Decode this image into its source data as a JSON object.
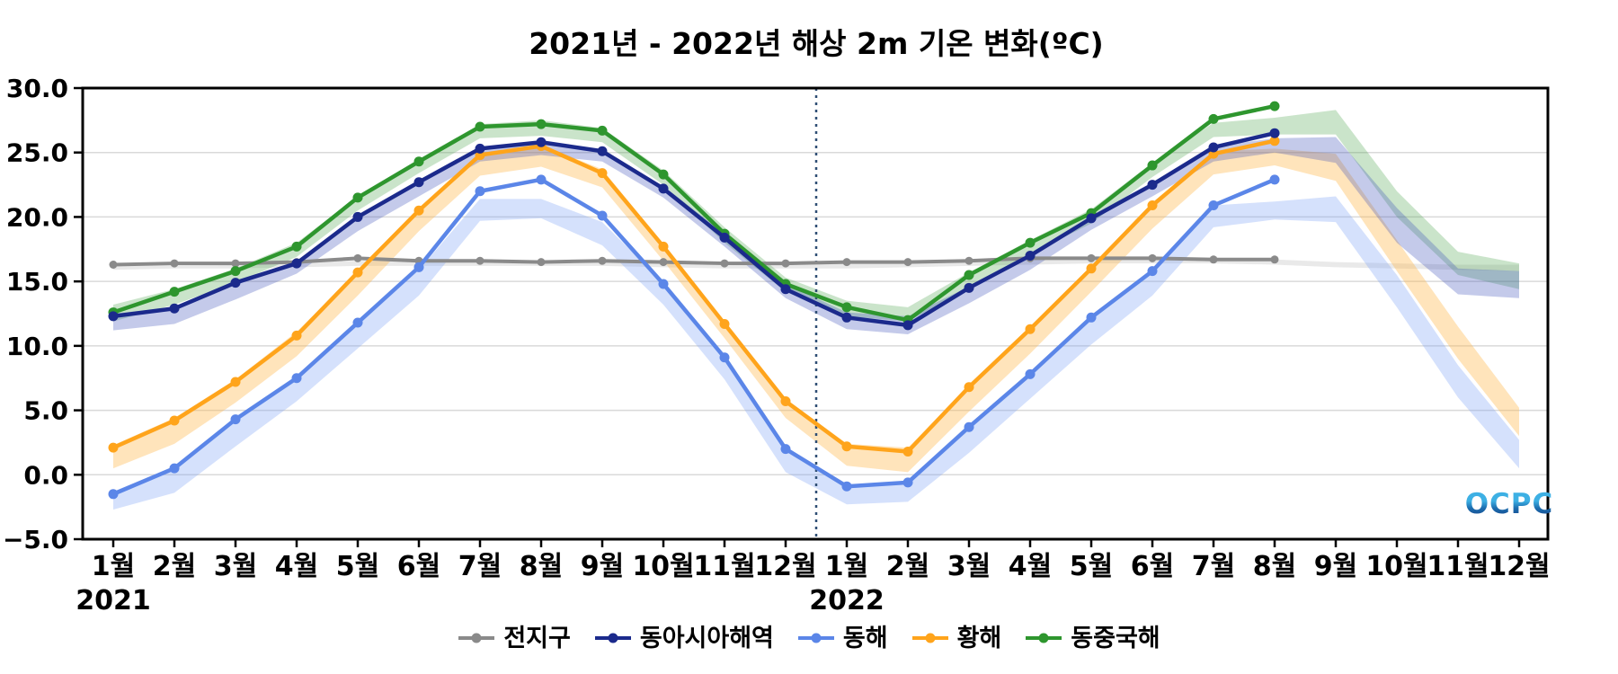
{
  "title": "2021년 - 2022년 해상 2m 기온 변화(ºC)",
  "logo_text": "OCPC",
  "chart_data": {
    "type": "line",
    "title": "2021년 - 2022년 해상 2m 기온 변화(ºC)",
    "ylim": [
      -5,
      30
    ],
    "grid": "horizontal",
    "legend_position": "bottom",
    "y_ticks": [
      {
        "value": 30,
        "label": "30.0"
      },
      {
        "value": 25,
        "label": "25.0"
      },
      {
        "value": 20,
        "label": "20.0"
      },
      {
        "value": 15,
        "label": "15.0"
      },
      {
        "value": 10,
        "label": "10.0"
      },
      {
        "value": 5,
        "label": "5.0"
      },
      {
        "value": 0,
        "label": "0.0"
      },
      {
        "value": -5,
        "label": "−5.0"
      }
    ],
    "gridline_values": [
      25,
      20,
      15,
      10,
      5,
      0
    ],
    "x_tick_labels": [
      "1월",
      "2월",
      "3월",
      "4월",
      "5월",
      "6월",
      "7월",
      "8월",
      "9월",
      "10월",
      "11월",
      "12월",
      "1월",
      "2월",
      "3월",
      "4월",
      "5월",
      "6월",
      "7월",
      "8월",
      "9월",
      "10월",
      "11월",
      "12월"
    ],
    "year_labels": [
      {
        "text": "2021",
        "month_index": 0
      },
      {
        "text": "2022",
        "month_index": 12
      }
    ],
    "year_divider_between": [
      11,
      12
    ],
    "divider_color": "#2f4e74",
    "series": [
      {
        "name": "전지구",
        "color": "#8a8a8a",
        "band_color": "#c9c9c9",
        "band_opacity": 0.4,
        "line_width": 4,
        "marker_radius": 4.5,
        "values": [
          16.3,
          16.4,
          16.4,
          16.5,
          16.8,
          16.6,
          16.6,
          16.5,
          16.6,
          16.5,
          16.4,
          16.4,
          16.5,
          16.5,
          16.6,
          16.8,
          16.8,
          16.8,
          16.7,
          16.7,
          null,
          null,
          null,
          null
        ],
        "band_low": [
          15.9,
          16.0,
          16.0,
          16.1,
          16.2,
          16.2,
          16.2,
          16.2,
          16.2,
          16.1,
          16.0,
          16.0,
          16.0,
          16.1,
          16.2,
          16.3,
          16.4,
          16.4,
          16.4,
          16.3,
          16.1,
          16.0,
          15.9,
          15.8
        ],
        "band_high": [
          16.3,
          16.4,
          16.4,
          16.5,
          16.6,
          16.6,
          16.6,
          16.6,
          16.6,
          16.5,
          16.4,
          16.4,
          16.4,
          16.5,
          16.6,
          16.7,
          16.8,
          16.8,
          16.8,
          16.7,
          16.5,
          16.4,
          16.3,
          16.3
        ]
      },
      {
        "name": "동아시아해역",
        "color": "#1b2a8c",
        "band_color": "#3b50b8",
        "band_opacity": 0.3,
        "line_width": 4.5,
        "marker_radius": 5.5,
        "values": [
          12.3,
          12.9,
          14.9,
          16.4,
          20.0,
          22.7,
          25.3,
          25.8,
          25.1,
          22.2,
          18.4,
          14.4,
          12.2,
          11.6,
          14.5,
          17.0,
          19.9,
          22.5,
          25.4,
          26.5,
          null,
          null,
          null,
          null
        ],
        "band_low": [
          11.2,
          11.7,
          13.6,
          15.6,
          18.9,
          21.6,
          24.3,
          24.8,
          24.3,
          21.5,
          17.7,
          13.7,
          11.3,
          10.9,
          13.3,
          15.9,
          19.0,
          21.6,
          24.3,
          25.0,
          24.2,
          18.0,
          14.0,
          13.7
        ],
        "band_high": [
          12.5,
          13.0,
          14.8,
          16.6,
          20.0,
          22.7,
          25.4,
          25.8,
          25.2,
          22.4,
          18.7,
          14.8,
          12.6,
          12.3,
          14.6,
          17.1,
          20.1,
          22.7,
          25.5,
          26.1,
          26.2,
          20.7,
          16.0,
          15.8
        ]
      },
      {
        "name": "동해",
        "color": "#5b86e8",
        "band_color": "#7da1f5",
        "band_opacity": 0.32,
        "line_width": 4.5,
        "marker_radius": 5.5,
        "values": [
          -1.5,
          0.5,
          4.3,
          7.5,
          11.8,
          16.1,
          22.0,
          22.9,
          20.1,
          14.8,
          9.1,
          2.0,
          -0.9,
          -0.6,
          3.7,
          7.8,
          12.2,
          15.8,
          20.9,
          22.9,
          null,
          null,
          null,
          null
        ],
        "band_low": [
          -2.7,
          -1.4,
          2.2,
          5.7,
          9.8,
          13.9,
          19.7,
          19.9,
          17.8,
          13.2,
          7.4,
          0.2,
          -2.3,
          -2.1,
          1.7,
          5.9,
          10.1,
          13.9,
          19.2,
          19.8,
          19.6,
          13.0,
          6.0,
          0.5
        ],
        "band_high": [
          -1.3,
          0.6,
          4.4,
          7.6,
          11.8,
          15.9,
          21.4,
          21.4,
          19.6,
          14.9,
          9.2,
          2.1,
          -0.8,
          -0.5,
          3.8,
          7.9,
          12.3,
          15.9,
          20.9,
          21.2,
          21.6,
          15.5,
          8.5,
          2.7
        ]
      },
      {
        "name": "황해",
        "color": "#ffa41b",
        "band_color": "#ffb84d",
        "band_opacity": 0.38,
        "line_width": 4.5,
        "marker_radius": 5.5,
        "values": [
          2.1,
          4.2,
          7.2,
          10.8,
          15.7,
          20.5,
          24.8,
          25.5,
          23.4,
          17.7,
          11.7,
          5.7,
          2.2,
          1.8,
          6.8,
          11.3,
          16.0,
          20.9,
          24.9,
          25.9,
          null,
          null,
          null,
          null
        ],
        "band_low": [
          0.5,
          2.4,
          5.6,
          9.2,
          13.9,
          18.9,
          23.2,
          23.9,
          22.3,
          16.6,
          10.6,
          4.4,
          0.7,
          0.2,
          4.9,
          9.4,
          14.2,
          19.1,
          23.3,
          24.0,
          22.8,
          15.8,
          9.0,
          3.0
        ],
        "band_high": [
          2.3,
          4.4,
          7.4,
          11.1,
          15.8,
          20.6,
          25.0,
          25.6,
          23.7,
          17.9,
          11.9,
          5.9,
          2.4,
          2.1,
          6.9,
          11.4,
          16.1,
          21.0,
          25.1,
          25.3,
          24.9,
          18.2,
          11.5,
          5.2
        ]
      },
      {
        "name": "동중국해",
        "color": "#2e962e",
        "band_color": "#4fa54f",
        "band_opacity": 0.3,
        "line_width": 4.5,
        "marker_radius": 5.5,
        "values": [
          12.6,
          14.2,
          15.8,
          17.7,
          21.5,
          24.3,
          27.0,
          27.2,
          26.7,
          23.3,
          18.7,
          14.8,
          13.0,
          12.0,
          15.5,
          18.0,
          20.3,
          24.0,
          27.6,
          28.6,
          null,
          null,
          null,
          null
        ],
        "band_low": [
          11.9,
          13.2,
          14.9,
          16.9,
          20.5,
          23.4,
          26.1,
          26.3,
          25.8,
          22.5,
          18.0,
          14.2,
          12.3,
          11.9,
          14.5,
          17.1,
          19.5,
          23.1,
          26.2,
          26.4,
          26.4,
          20.0,
          15.5,
          14.4
        ],
        "band_high": [
          13.2,
          14.4,
          16.0,
          18.0,
          21.6,
          24.5,
          27.2,
          27.5,
          26.9,
          23.6,
          19.2,
          15.3,
          13.5,
          13.0,
          15.7,
          18.2,
          20.6,
          24.2,
          27.3,
          27.7,
          28.3,
          22.0,
          17.3,
          16.4
        ]
      }
    ],
    "draw_order": [
      0,
      2,
      3,
      4,
      1
    ]
  }
}
